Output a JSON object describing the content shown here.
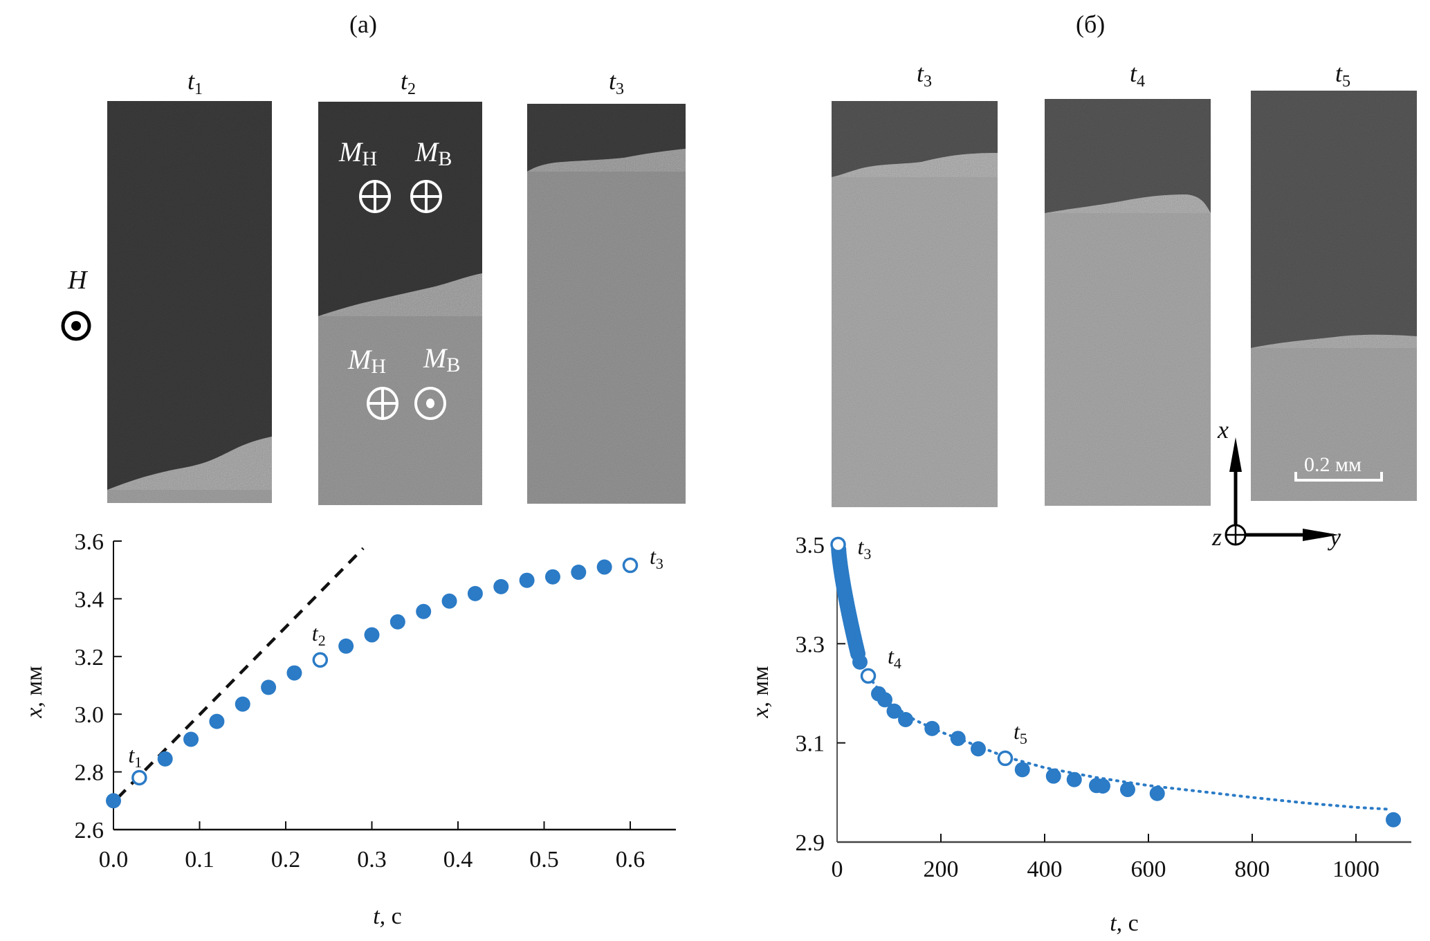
{
  "figure": {
    "panel_a_label": "(a)",
    "panel_b_label": "(б)",
    "panel_a_frames": [
      {
        "t": "t",
        "sub": "1"
      },
      {
        "t": "t",
        "sub": "2"
      },
      {
        "t": "t",
        "sub": "3"
      }
    ],
    "panel_b_frames": [
      {
        "t": "t",
        "sub": "3"
      },
      {
        "t": "t",
        "sub": "4"
      },
      {
        "t": "t",
        "sub": "5"
      }
    ],
    "field_label": "H",
    "field_direction": "out-of-plane (dot)",
    "magnetization_labels": {
      "upper": [
        {
          "m": "M",
          "sub": "Н",
          "symbol": "into-plane"
        },
        {
          "m": "M",
          "sub": "В",
          "symbol": "into-plane"
        }
      ],
      "lower": [
        {
          "m": "M",
          "sub": "Н",
          "symbol": "into-plane"
        },
        {
          "m": "M",
          "sub": "В",
          "symbol": "out-of-plane"
        }
      ]
    },
    "scale_bar_label": "0.2 мм",
    "coord_axes": {
      "x": "x",
      "y": "y",
      "z": "z"
    },
    "colors": {
      "marker": "#2b7bc6",
      "dashed_line": "#111111",
      "dark_domain": "#3a3a3a",
      "light_domain": "#9a9a9a"
    }
  },
  "chart_data": [
    {
      "type": "scatter",
      "panel": "(a)",
      "xlabel": "t, с",
      "ylabel": "x, мм",
      "xlim": [
        0.0,
        0.65
      ],
      "ylim": [
        2.6,
        3.6
      ],
      "xticks": [
        "0.0",
        "0.1",
        "0.2",
        "0.3",
        "0.4",
        "0.5",
        "0.6"
      ],
      "xtick_values": [
        0.0,
        0.1,
        0.2,
        0.3,
        0.4,
        0.5,
        0.6
      ],
      "yticks": [
        "2.6",
        "2.8",
        "3.0",
        "3.2",
        "3.4",
        "3.6"
      ],
      "ytick_values": [
        2.6,
        2.8,
        3.0,
        3.2,
        3.4,
        3.6
      ],
      "grid": false,
      "series": [
        {
          "name": "domain wall position",
          "points": [
            {
              "t": 0.0,
              "x": 2.7,
              "open": false
            },
            {
              "t": 0.03,
              "x": 2.78,
              "open": true,
              "label": "t",
              "label_sub": "1"
            },
            {
              "t": 0.06,
              "x": 2.845,
              "open": false
            },
            {
              "t": 0.09,
              "x": 2.913,
              "open": false
            },
            {
              "t": 0.12,
              "x": 2.975,
              "open": false
            },
            {
              "t": 0.15,
              "x": 3.035,
              "open": false
            },
            {
              "t": 0.18,
              "x": 3.093,
              "open": false
            },
            {
              "t": 0.21,
              "x": 3.143,
              "open": false
            },
            {
              "t": 0.24,
              "x": 3.188,
              "open": true,
              "label": "t",
              "label_sub": "2"
            },
            {
              "t": 0.27,
              "x": 3.236,
              "open": false
            },
            {
              "t": 0.3,
              "x": 3.275,
              "open": false
            },
            {
              "t": 0.33,
              "x": 3.32,
              "open": false
            },
            {
              "t": 0.36,
              "x": 3.356,
              "open": false
            },
            {
              "t": 0.39,
              "x": 3.392,
              "open": false
            },
            {
              "t": 0.42,
              "x": 3.418,
              "open": false
            },
            {
              "t": 0.45,
              "x": 3.442,
              "open": false
            },
            {
              "t": 0.48,
              "x": 3.464,
              "open": false
            },
            {
              "t": 0.51,
              "x": 3.476,
              "open": false
            },
            {
              "t": 0.54,
              "x": 3.492,
              "open": false
            },
            {
              "t": 0.57,
              "x": 3.51,
              "open": false
            },
            {
              "t": 0.6,
              "x": 3.516,
              "open": true,
              "label": "t",
              "label_sub": "3"
            }
          ]
        }
      ],
      "lines": [
        {
          "name": "initial slope (dashed)",
          "style": "dashed",
          "from": {
            "t": 0.005,
            "x": 2.71
          },
          "to": {
            "t": 0.29,
            "x": 3.575
          }
        }
      ]
    },
    {
      "type": "scatter",
      "panel": "(б)",
      "xlabel": "t, с",
      "ylabel": "x, мм",
      "xlim": [
        0,
        1100
      ],
      "ylim": [
        2.9,
        3.5
      ],
      "xticks": [
        "0",
        "200",
        "400",
        "600",
        "800",
        "1000"
      ],
      "xtick_values": [
        0,
        200,
        400,
        600,
        800,
        1000
      ],
      "yticks": [
        "2.9",
        "3.1",
        "3.3",
        "3.5"
      ],
      "ytick_values": [
        2.9,
        3.1,
        3.3,
        3.5
      ],
      "grid": false,
      "series": [
        {
          "name": "domain wall position",
          "dense_segment": {
            "t_start": 3,
            "t_end": 40,
            "x_start": 3.49,
            "x_end": 3.28,
            "count": 40
          },
          "points": [
            {
              "t": 2,
              "x": 3.5,
              "open": true,
              "label": "t",
              "label_sub": "3"
            },
            {
              "t": 44,
              "x": 3.263,
              "open": false
            },
            {
              "t": 60,
              "x": 3.235,
              "open": true,
              "label": "t",
              "label_sub": "4"
            },
            {
              "t": 80,
              "x": 3.199,
              "open": false
            },
            {
              "t": 92,
              "x": 3.187,
              "open": false
            },
            {
              "t": 110,
              "x": 3.164,
              "open": false
            },
            {
              "t": 132,
              "x": 3.147,
              "open": false
            },
            {
              "t": 183,
              "x": 3.129,
              "open": false
            },
            {
              "t": 233,
              "x": 3.109,
              "open": false
            },
            {
              "t": 272,
              "x": 3.088,
              "open": false
            },
            {
              "t": 324,
              "x": 3.069,
              "open": true,
              "label": "t",
              "label_sub": "5"
            },
            {
              "t": 357,
              "x": 3.046,
              "open": false
            },
            {
              "t": 417,
              "x": 3.033,
              "open": false
            },
            {
              "t": 457,
              "x": 3.026,
              "open": false
            },
            {
              "t": 500,
              "x": 3.014,
              "open": false
            },
            {
              "t": 512,
              "x": 3.013,
              "open": false
            },
            {
              "t": 560,
              "x": 3.006,
              "open": false
            },
            {
              "t": 617,
              "x": 2.998,
              "open": false
            },
            {
              "t": 1072,
              "x": 2.945,
              "open": false
            }
          ]
        }
      ],
      "lines": [
        {
          "name": "fit (dotted)",
          "style": "dotted",
          "points": [
            [
              60,
              3.235
            ],
            [
              100,
              3.18
            ],
            [
              150,
              3.146
            ],
            [
              200,
              3.122
            ],
            [
              250,
              3.102
            ],
            [
              324,
              3.072
            ],
            [
              400,
              3.05
            ],
            [
              500,
              3.03
            ],
            [
              600,
              3.014
            ],
            [
              700,
              3.002
            ],
            [
              800,
              2.99
            ],
            [
              900,
              2.979
            ],
            [
              1000,
              2.97
            ],
            [
              1065,
              2.966
            ]
          ]
        }
      ]
    }
  ]
}
